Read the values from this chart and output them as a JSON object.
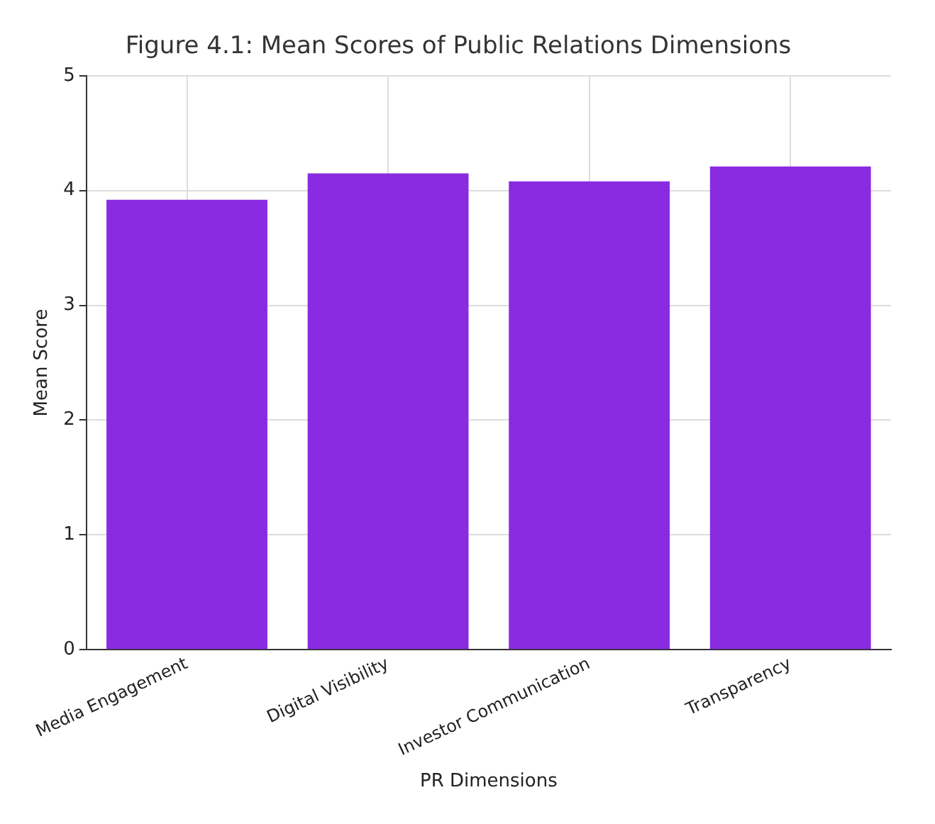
{
  "chart_data": {
    "type": "bar",
    "title": "Figure 4.1: Mean Scores of Public Relations Dimensions",
    "xlabel": "PR Dimensions",
    "ylabel": "Mean Score",
    "categories": [
      "Media Engagement",
      "Digital Visibility",
      "Investor Communication",
      "Transparency"
    ],
    "values": [
      3.92,
      4.15,
      4.08,
      4.21
    ],
    "color": "#8a2be2",
    "ylim": [
      0,
      5
    ],
    "yticks": [
      0,
      1,
      2,
      3,
      4,
      5
    ],
    "grid": true,
    "legend": false
  }
}
